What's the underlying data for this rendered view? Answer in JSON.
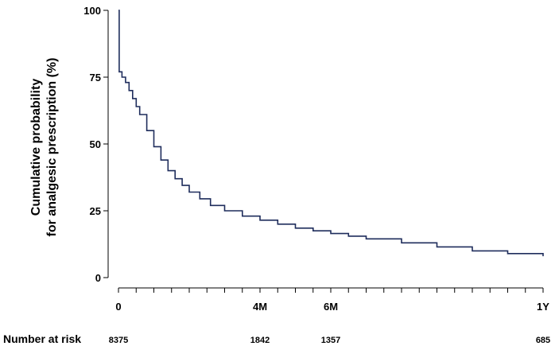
{
  "chart_data": {
    "type": "line",
    "title": "",
    "ylabel_lines": [
      "Cumulative probability",
      "for analgesic prescription (%)"
    ],
    "xlabel": "",
    "xlim": [
      0,
      12
    ],
    "ylim": [
      0,
      100
    ],
    "y_ticks": [
      0,
      25,
      50,
      75,
      100
    ],
    "x_ticks": [
      {
        "x": 0,
        "label": "0"
      },
      {
        "x": 4,
        "label": "4M"
      },
      {
        "x": 6,
        "label": "6M"
      },
      {
        "x": 12,
        "label": "1Y"
      }
    ],
    "x_minor_ticks": [
      0,
      0.5,
      1,
      1.5,
      2,
      2.5,
      3,
      3.5,
      4,
      4.5,
      5,
      5.5,
      6,
      6.5,
      7,
      7.5,
      8,
      8.5,
      9,
      9.5,
      10,
      10.5,
      11,
      11.5,
      12
    ],
    "series": [
      {
        "color": "#1f2d5c",
        "x": [
          0,
          0.01,
          0.02,
          0.1,
          0.2,
          0.3,
          0.4,
          0.5,
          0.6,
          0.8,
          1.0,
          1.2,
          1.4,
          1.6,
          1.8,
          2.0,
          2.3,
          2.6,
          3.0,
          3.5,
          4.0,
          4.5,
          5.0,
          5.5,
          6.0,
          6.5,
          7.0,
          8.0,
          9.0,
          10.0,
          11.0,
          12.0
        ],
        "y": [
          100,
          100,
          77,
          75,
          73,
          70,
          67,
          64,
          61,
          55,
          49,
          44,
          40,
          37,
          34.5,
          32,
          29.5,
          27,
          25,
          23,
          21.5,
          20,
          18.5,
          17.5,
          16.5,
          15.5,
          14.5,
          13,
          11.5,
          10,
          9,
          8
        ]
      }
    ],
    "grid": false,
    "legend": "none",
    "risk_table": {
      "title": "Number at risk",
      "entries": [
        {
          "x": 0,
          "label": "8375"
        },
        {
          "x": 4,
          "label": "1842"
        },
        {
          "x": 6,
          "label": "1357"
        },
        {
          "x": 12,
          "label": "685"
        }
      ]
    }
  }
}
